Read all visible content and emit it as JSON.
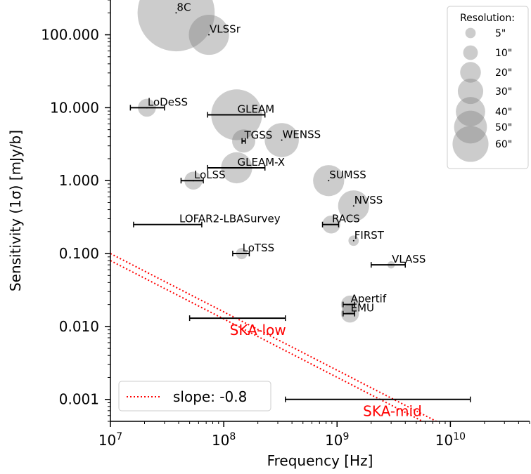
{
  "chart_data": {
    "type": "scatter",
    "title": "",
    "xlabel": "Frequency [Hz]",
    "ylabel": "Sensitivity (1σ) [mJy/b]",
    "xscale": "log",
    "yscale": "log",
    "xlim": [
      10000000,
      50000000000
    ],
    "ylim": [
      0.0005,
      300
    ],
    "xtick_labels": [
      {
        "base": "10",
        "exp": "7",
        "value": 10000000
      },
      {
        "base": "10",
        "exp": "8",
        "value": 100000000
      },
      {
        "base": "10",
        "exp": "9",
        "value": 1000000000
      },
      {
        "base": "10",
        "exp": "10",
        "value": 10000000000
      }
    ],
    "ytick_labels": [
      {
        "label": "100.000",
        "value": 100
      },
      {
        "label": "10.000",
        "value": 10
      },
      {
        "label": "1.000",
        "value": 1
      },
      {
        "label": "0.100",
        "value": 0.1
      },
      {
        "label": "0.010",
        "value": 0.01
      },
      {
        "label": "0.001",
        "value": 0.001
      }
    ],
    "bubble_color": "#808080",
    "surveys": [
      {
        "name": "8C",
        "freq": 38000000,
        "sens": 200,
        "resolution": 276
      },
      {
        "name": "VLSSr",
        "freq": 74000000,
        "sens": 100,
        "resolution": 75
      },
      {
        "name": "LoDeSS",
        "freq": 21000000,
        "sens": 10,
        "resolution": 15,
        "fmin": 15000000,
        "fmax": 30000000
      },
      {
        "name": "GLEAM",
        "freq": 130000000,
        "sens": 8,
        "resolution": 120,
        "fmin": 72000000,
        "fmax": 231000000
      },
      {
        "name": "WENSS",
        "freq": 325000000,
        "sens": 3.6,
        "resolution": 54
      },
      {
        "name": "TGSS",
        "freq": 150000000,
        "sens": 3.5,
        "resolution": 25,
        "fmin": 145000000,
        "fmax": 155000000
      },
      {
        "name": "GLEAM-X",
        "freq": 130000000,
        "sens": 1.5,
        "resolution": 45,
        "fmin": 72000000,
        "fmax": 231000000
      },
      {
        "name": "LoLSS",
        "freq": 54000000,
        "sens": 1.0,
        "resolution": 15,
        "fmin": 42000000,
        "fmax": 66000000
      },
      {
        "name": "SUMSS",
        "freq": 843000000,
        "sens": 1.0,
        "resolution": 45
      },
      {
        "name": "NVSS",
        "freq": 1400000000,
        "sens": 0.45,
        "resolution": 45
      },
      {
        "name": "RACS",
        "freq": 888000000,
        "sens": 0.25,
        "resolution": 15,
        "fmin": 744000000,
        "fmax": 1032000000
      },
      {
        "name": "LOFAR2-LBASurvey",
        "freq": 40000000,
        "sens": 0.25,
        "resolution": 0,
        "fmin": 16000000,
        "fmax": 64000000
      },
      {
        "name": "FIRST",
        "freq": 1400000000,
        "sens": 0.15,
        "resolution": 5
      },
      {
        "name": "LoTSS",
        "freq": 144000000,
        "sens": 0.1,
        "resolution": 6,
        "fmin": 120000000,
        "fmax": 168000000
      },
      {
        "name": "VLASS",
        "freq": 3000000000,
        "sens": 0.07,
        "resolution": 2.5,
        "fmin": 2000000000,
        "fmax": 4000000000
      },
      {
        "name": "Apertif",
        "freq": 1300000000,
        "sens": 0.02,
        "resolution": 15,
        "fmin": 1130000000,
        "fmax": 1430000000
      },
      {
        "name": "EMU",
        "freq": 1300000000,
        "sens": 0.015,
        "resolution": 15,
        "fmin": 1130000000,
        "fmax": 1430000000
      },
      {
        "name": "SKA-low",
        "freq": 200000000,
        "sens": 0.013,
        "resolution": 0,
        "fmin": 50000000,
        "fmax": 350000000,
        "highlight": true
      },
      {
        "name": "SKA-mid",
        "freq": 3000000000,
        "sens": 0.001,
        "resolution": 0,
        "fmin": 350000000,
        "fmax": 15000000000,
        "highlight": true
      }
    ],
    "slope_lines": [
      {
        "x0": 10000000,
        "y0": 0.1,
        "slope": -0.8
      },
      {
        "x0": 10000000,
        "y0": 0.08,
        "slope": -0.8
      }
    ],
    "line_color": "#ff0000",
    "highlight_color": "#ff0000",
    "legend": {
      "label": "slope: -0.8",
      "placement": "lower left"
    },
    "resolution_legend": {
      "title": "Resolution:",
      "placement": "upper right",
      "entries": [
        {
          "label": "5\"",
          "resolution": 5
        },
        {
          "label": "10\"",
          "resolution": 10
        },
        {
          "label": "20\"",
          "resolution": 20
        },
        {
          "label": "30\"",
          "resolution": 30
        },
        {
          "label": "40\"",
          "resolution": 40
        },
        {
          "label": "50\"",
          "resolution": 50
        },
        {
          "label": "60\"",
          "resolution": 60
        }
      ]
    }
  }
}
